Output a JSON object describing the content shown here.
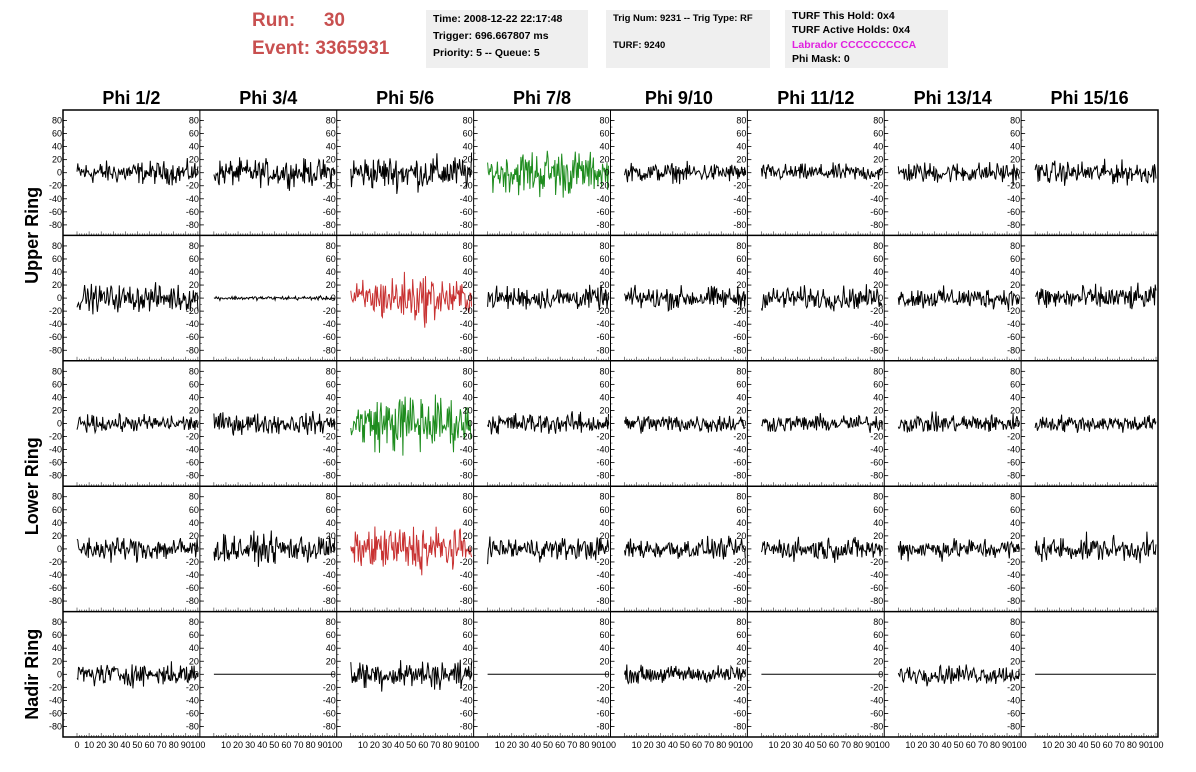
{
  "header": {
    "run_label": "Run:",
    "run_value": "30",
    "event_label": "Event:",
    "event_value": "3365931",
    "time": "Time: 2008-12-22 22:17:48",
    "trigger": "Trigger: 696.667807 ms",
    "priority": "Priority: 5 -- Queue: 5",
    "trig_num": "Trig Num: 9231 -- Trig Type: RF",
    "turf": "TURF: 9240",
    "turf_this_hold": "TURF This Hold: 0x4",
    "turf_active_holds": "TURF Active Holds: 0x4",
    "labrador": "Labrador CCCCCCCCCA",
    "phi_mask": "Phi Mask: 0",
    "labrador_color": "#e020e0",
    "run_color": "#c85050"
  },
  "chart_data": {
    "type": "line",
    "columns": [
      "Phi 1/2",
      "Phi 3/4",
      "Phi 5/6",
      "Phi 7/8",
      "Phi 9/10",
      "Phi 11/12",
      "Phi 13/14",
      "Phi 15/16"
    ],
    "ring_labels": [
      "Upper Ring",
      "Lower Ring",
      "Nadir Ring"
    ],
    "rows": 5,
    "ylim": [
      -90,
      90
    ],
    "y_ticks": [
      80,
      60,
      40,
      20,
      0,
      -20,
      -40,
      -60,
      -80
    ],
    "xlim": [
      0,
      100
    ],
    "x_ticks": [
      0,
      10,
      20,
      30,
      40,
      50,
      60,
      70,
      80,
      90,
      100
    ],
    "colors": {
      "normal": "#000000",
      "green": "#1e8c1e",
      "red": "#c83232"
    },
    "panels": [
      [
        "normal",
        "normal",
        "normal",
        "green",
        "normal",
        "normal",
        "normal",
        "normal"
      ],
      [
        "normal",
        "normal",
        "red",
        "normal",
        "normal",
        "normal",
        "normal",
        "normal"
      ],
      [
        "normal",
        "normal",
        "green",
        "normal",
        "normal",
        "normal",
        "normal",
        "normal"
      ],
      [
        "normal",
        "normal",
        "red",
        "normal",
        "normal",
        "normal",
        "normal",
        "normal"
      ],
      [
        "normal",
        "flat",
        "normal",
        "flat",
        "normal",
        "flat",
        "normal",
        "flat"
      ]
    ],
    "amplitudes": [
      [
        12,
        14,
        18,
        22,
        10,
        9,
        11,
        12
      ],
      [
        14,
        2,
        22,
        12,
        12,
        12,
        11,
        13
      ],
      [
        9,
        11,
        28,
        11,
        10,
        9,
        10,
        9
      ],
      [
        13,
        15,
        22,
        12,
        11,
        12,
        11,
        13
      ],
      [
        12,
        0,
        15,
        0,
        9,
        0,
        10,
        0
      ]
    ]
  }
}
